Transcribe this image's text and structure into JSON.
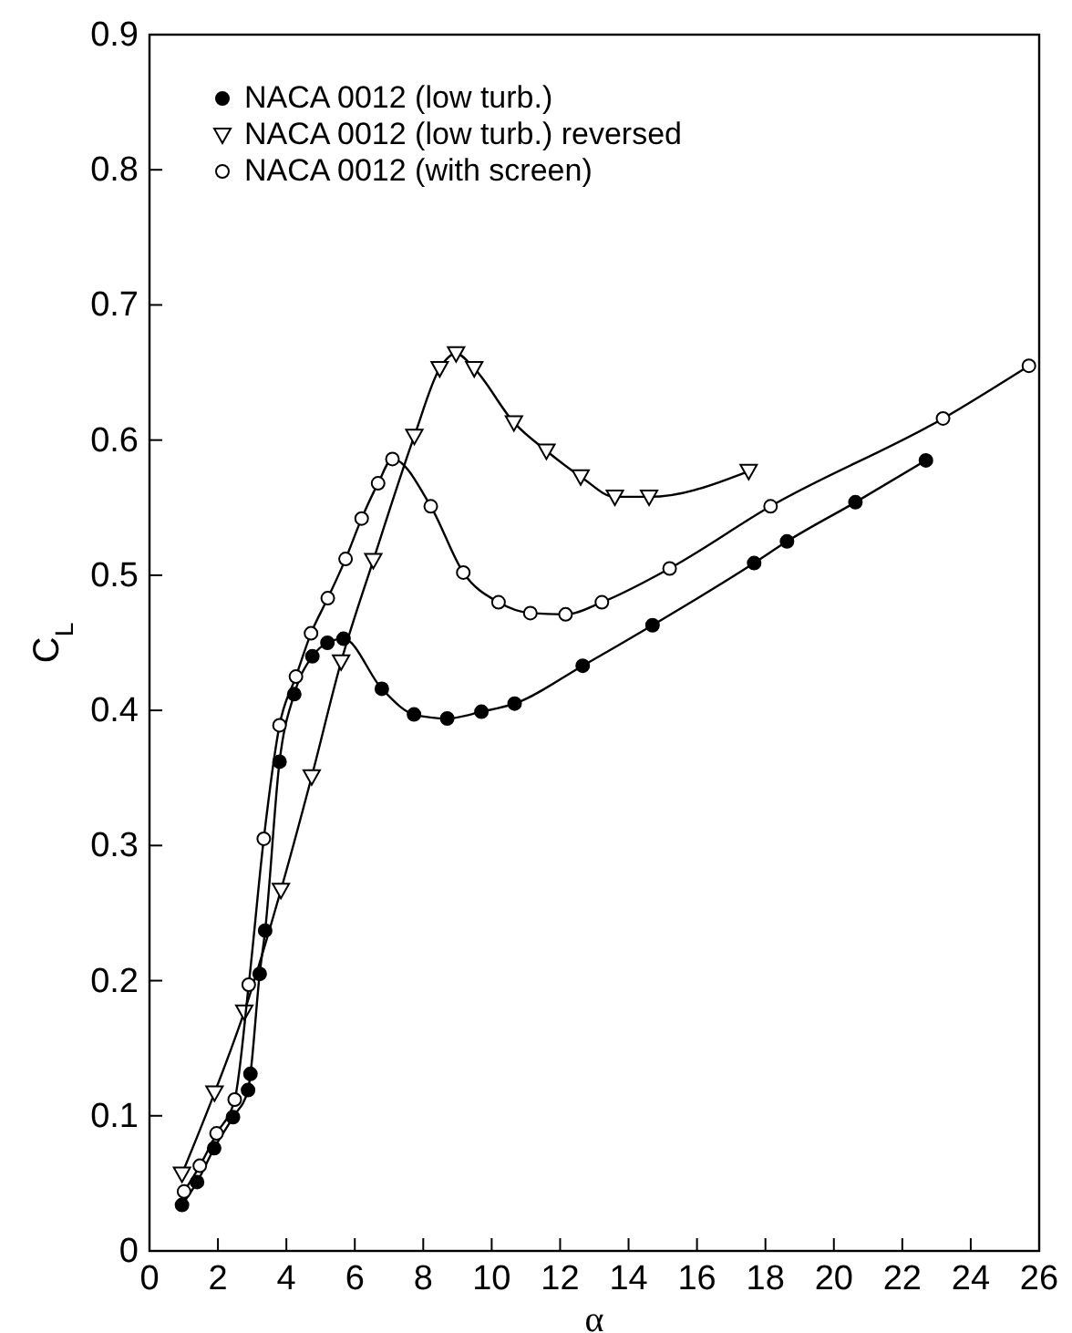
{
  "chart_data": {
    "type": "line",
    "xlabel": "α",
    "ylabel": "C$_{L}$",
    "xlim": [
      0,
      26
    ],
    "ylim": [
      0,
      0.9
    ],
    "xticks": [
      0,
      2,
      4,
      6,
      8,
      10,
      12,
      14,
      16,
      18,
      20,
      22,
      24,
      26
    ],
    "yticks": [
      0,
      0.1,
      0.2,
      0.3,
      0.4,
      0.5,
      0.6,
      0.7,
      0.8,
      0.9
    ],
    "legend": "top left",
    "grid": false,
    "line_style": "solid",
    "series": [
      {
        "name": "NACA 0012 (low turb.)",
        "color": "#000000",
        "marker": "circle",
        "x": [
          0.95,
          1.39,
          1.89,
          2.44,
          2.88,
          2.95,
          3.22,
          3.38,
          3.8,
          4.23,
          4.76,
          5.2,
          5.67,
          6.79,
          7.73,
          8.7,
          9.7,
          10.67,
          12.66,
          14.7,
          17.67,
          18.63,
          20.63,
          22.69
        ],
        "values": [
          0.034,
          0.051,
          0.076,
          0.099,
          0.119,
          0.131,
          0.205,
          0.237,
          0.362,
          0.412,
          0.44,
          0.45,
          0.453,
          0.416,
          0.397,
          0.394,
          0.399,
          0.405,
          0.433,
          0.463,
          0.509,
          0.525,
          0.554,
          0.585
        ]
      },
      {
        "name": "NACA 0012 (low turb.) reversed",
        "color": "#000000",
        "marker": "triangle",
        "x": [
          0.95,
          1.9,
          2.77,
          3.84,
          4.74,
          5.6,
          6.54,
          7.74,
          8.48,
          8.96,
          9.49,
          10.65,
          11.6,
          12.6,
          13.6,
          14.6,
          17.51
        ],
        "values": [
          0.057,
          0.117,
          0.177,
          0.267,
          0.351,
          0.436,
          0.511,
          0.603,
          0.653,
          0.664,
          0.653,
          0.613,
          0.592,
          0.573,
          0.558,
          0.558,
          0.577
        ]
      },
      {
        "name": "NACA 0012 (with screen)",
        "color": "#000000",
        "marker": "circle",
        "x": [
          1.01,
          1.47,
          1.96,
          2.49,
          2.9,
          3.34,
          3.8,
          4.28,
          4.72,
          5.21,
          5.73,
          6.2,
          6.68,
          7.1,
          8.22,
          9.17,
          10.2,
          11.13,
          12.16,
          13.22,
          15.2,
          18.15,
          23.19,
          25.7
        ],
        "values": [
          0.044,
          0.063,
          0.087,
          0.112,
          0.197,
          0.305,
          0.389,
          0.425,
          0.457,
          0.483,
          0.512,
          0.542,
          0.568,
          0.586,
          0.551,
          0.502,
          0.48,
          0.472,
          0.471,
          0.48,
          0.505,
          0.551,
          0.616,
          0.655
        ]
      }
    ]
  }
}
